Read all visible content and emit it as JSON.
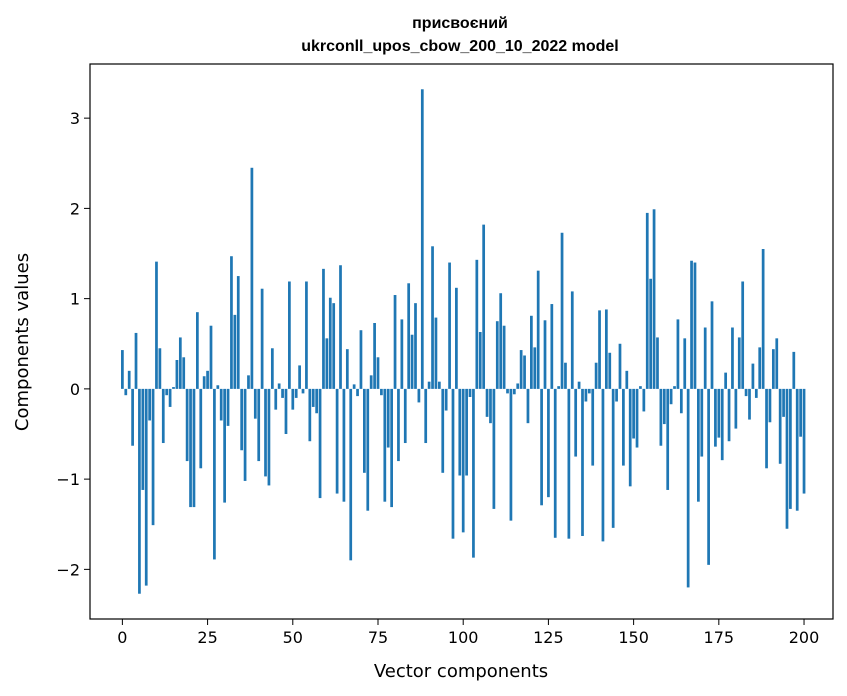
{
  "chart_data": {
    "type": "bar",
    "title": "присвоєний",
    "subtitle": "ukrconll_upos_cbow_200_10_2022 model",
    "xlabel": "Vector components",
    "ylabel": "Components values",
    "xlim": [
      -9.5,
      208.5
    ],
    "ylim": [
      -2.55,
      3.6
    ],
    "xticks": [
      0,
      25,
      50,
      75,
      100,
      125,
      150,
      175,
      200
    ],
    "yticks": [
      -2,
      -1,
      0,
      1,
      2,
      3
    ],
    "grid": false,
    "bar_color": "#1f77b4",
    "x_start": 0,
    "values": [
      0.43,
      -0.07,
      0.2,
      -0.63,
      0.62,
      -2.27,
      -1.12,
      -2.18,
      -0.35,
      -1.51,
      1.41,
      0.45,
      -0.6,
      -0.07,
      -0.2,
      0.02,
      0.32,
      0.57,
      0.35,
      -0.8,
      -1.31,
      -1.31,
      0.85,
      -0.88,
      0.14,
      0.2,
      0.7,
      -1.89,
      0.04,
      -0.35,
      -1.26,
      -0.41,
      1.47,
      0.82,
      1.25,
      -0.68,
      -1.02,
      0.15,
      2.45,
      -0.33,
      -0.8,
      1.11,
      -0.97,
      -1.07,
      0.45,
      -0.23,
      0.06,
      -0.1,
      -0.5,
      1.19,
      -0.23,
      -0.1,
      0.26,
      -0.05,
      1.19,
      -0.58,
      -0.2,
      -0.27,
      -1.21,
      1.33,
      0.56,
      1.01,
      0.95,
      -1.16,
      1.37,
      -1.25,
      0.44,
      -1.9,
      0.05,
      -0.08,
      0.65,
      -0.93,
      -1.35,
      0.15,
      0.73,
      0.35,
      -0.07,
      -1.25,
      -0.65,
      -1.31,
      1.04,
      -0.8,
      0.77,
      -0.6,
      1.17,
      0.6,
      0.95,
      -0.15,
      3.32,
      -0.6,
      0.08,
      1.58,
      0.79,
      0.08,
      -0.93,
      -0.24,
      1.4,
      -1.66,
      1.12,
      -0.96,
      -1.59,
      -0.96,
      -0.09,
      -1.87,
      1.43,
      0.63,
      1.82,
      -0.31,
      -0.38,
      -1.33,
      0.75,
      1.06,
      0.7,
      -0.05,
      -1.46,
      -0.06,
      0.06,
      0.43,
      0.37,
      -0.38,
      0.81,
      0.46,
      1.31,
      -1.29,
      0.76,
      -1.2,
      0.94,
      -1.65,
      0.03,
      1.73,
      0.29,
      -1.66,
      1.08,
      -0.75,
      0.08,
      -1.63,
      -0.14,
      -0.05,
      -0.85,
      0.29,
      0.87,
      -1.69,
      0.88,
      0.4,
      -1.54,
      -0.14,
      0.5,
      -0.85,
      0.2,
      -1.08,
      -0.55,
      -0.65,
      0.03,
      -0.25,
      1.95,
      1.22,
      1.99,
      0.57,
      -0.63,
      -0.39,
      -1.12,
      -0.17,
      0.03,
      0.77,
      -0.27,
      0.56,
      -2.2,
      1.42,
      1.4,
      -1.25,
      -0.75,
      0.68,
      -1.95,
      0.97,
      -0.64,
      -0.54,
      -0.79,
      0.18,
      -0.58,
      0.68,
      -0.44,
      0.57,
      1.19,
      -0.08,
      -0.34,
      0.28,
      -0.1,
      0.46,
      1.55,
      -0.88,
      -0.37,
      0.44,
      0.56,
      -0.83,
      -0.31,
      -1.55,
      -1.33,
      0.41,
      -1.35,
      -0.53,
      -1.16
    ]
  }
}
